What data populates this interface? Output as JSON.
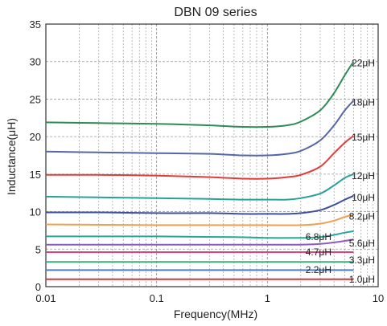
{
  "chart_data": {
    "type": "line",
    "title": "DBN 09 series",
    "xlabel": "Frequency(MHz)",
    "ylabel": "Inductance(μH)",
    "xscale": "log",
    "xlim": [
      0.01,
      10
    ],
    "ylim": [
      0,
      35
    ],
    "xticks": [
      0.01,
      0.1,
      1,
      10
    ],
    "xtick_labels": [
      "0.01",
      "0.1",
      "1",
      "10"
    ],
    "yticks": [
      0,
      5,
      10,
      15,
      20,
      25,
      30,
      35
    ],
    "ytick_labels": [
      "0",
      "5",
      "10",
      "15",
      "20",
      "25",
      "30",
      "35"
    ],
    "grid": true,
    "legend": "inline labels at right end of each curve",
    "series": [
      {
        "name": "22μH",
        "color": "#2e8b57",
        "x": [
          0.01,
          0.03,
          0.1,
          0.3,
          0.6,
          1,
          1.5,
          2,
          3,
          4,
          5,
          6
        ],
        "y": [
          21.9,
          21.8,
          21.7,
          21.5,
          21.3,
          21.3,
          21.5,
          22.0,
          23.5,
          25.8,
          28.2,
          30.0
        ]
      },
      {
        "name": "18μH",
        "color": "#5566aa",
        "x": [
          0.01,
          0.03,
          0.1,
          0.3,
          0.6,
          1,
          1.5,
          2,
          3,
          4,
          5,
          6
        ],
        "y": [
          18.0,
          17.9,
          17.8,
          17.7,
          17.5,
          17.5,
          17.7,
          18.1,
          19.5,
          21.5,
          23.5,
          24.8
        ]
      },
      {
        "name": "15μH",
        "color": "#e03c3c",
        "x": [
          0.01,
          0.03,
          0.1,
          0.3,
          0.6,
          1,
          1.5,
          2,
          3,
          4,
          5,
          6
        ],
        "y": [
          14.9,
          14.9,
          14.8,
          14.6,
          14.4,
          14.4,
          14.6,
          14.9,
          16.0,
          17.8,
          19.2,
          20.1
        ]
      },
      {
        "name": "12μH",
        "color": "#2aa198",
        "x": [
          0.01,
          0.03,
          0.1,
          0.3,
          0.6,
          1,
          1.5,
          2,
          3,
          4,
          5,
          6
        ],
        "y": [
          12.0,
          11.9,
          11.8,
          11.7,
          11.6,
          11.6,
          11.6,
          11.8,
          12.4,
          13.5,
          14.5,
          15.0
        ]
      },
      {
        "name": "10μH",
        "color": "#3f4fa0",
        "x": [
          0.01,
          0.03,
          0.1,
          0.3,
          0.6,
          1,
          1.5,
          2,
          3,
          4,
          5,
          6
        ],
        "y": [
          9.9,
          9.9,
          9.8,
          9.8,
          9.7,
          9.7,
          9.7,
          9.8,
          10.2,
          10.9,
          11.6,
          12.1
        ]
      },
      {
        "name": "8.2μH",
        "color": "#f0a050",
        "x": [
          0.01,
          0.1,
          0.5,
          1,
          2,
          3,
          4,
          5,
          6
        ],
        "y": [
          8.3,
          8.2,
          8.2,
          8.2,
          8.2,
          8.4,
          8.8,
          9.3,
          9.6
        ]
      },
      {
        "name": "6.8μH",
        "color": "#26a69a",
        "x": [
          0.01,
          0.1,
          0.5,
          1,
          2,
          3,
          4,
          5,
          6
        ],
        "y": [
          6.7,
          6.7,
          6.6,
          6.5,
          6.5,
          6.6,
          6.9,
          7.2,
          7.4
        ]
      },
      {
        "name": "5.6μH",
        "color": "#8e5bbf",
        "x": [
          0.01,
          0.1,
          0.5,
          1,
          2,
          3,
          4,
          5,
          6
        ],
        "y": [
          5.6,
          5.6,
          5.6,
          5.6,
          5.6,
          5.7,
          5.9,
          6.1,
          6.3
        ]
      },
      {
        "name": "4.7μH",
        "color": "#e0407a",
        "x": [
          0.01,
          0.1,
          0.5,
          1,
          2,
          4,
          6
        ],
        "y": [
          4.6,
          4.6,
          4.6,
          4.6,
          4.6,
          4.6,
          4.6
        ]
      },
      {
        "name": "3.3μH",
        "color": "#3ab07a",
        "x": [
          0.01,
          0.1,
          0.5,
          1,
          2,
          4,
          6
        ],
        "y": [
          3.3,
          3.3,
          3.3,
          3.3,
          3.3,
          3.3,
          3.3
        ]
      },
      {
        "name": "2.2μH",
        "color": "#4a7fc0",
        "x": [
          0.01,
          0.1,
          0.5,
          1,
          2,
          4,
          6
        ],
        "y": [
          2.2,
          2.2,
          2.2,
          2.2,
          2.2,
          2.2,
          2.2
        ]
      },
      {
        "name": "1.0μH",
        "color": "#d43a3a",
        "x": [
          0.01,
          0.1,
          0.5,
          1,
          2,
          4,
          6
        ],
        "y": [
          1.0,
          1.0,
          1.0,
          1.0,
          1.0,
          1.0,
          1.0
        ]
      }
    ]
  }
}
